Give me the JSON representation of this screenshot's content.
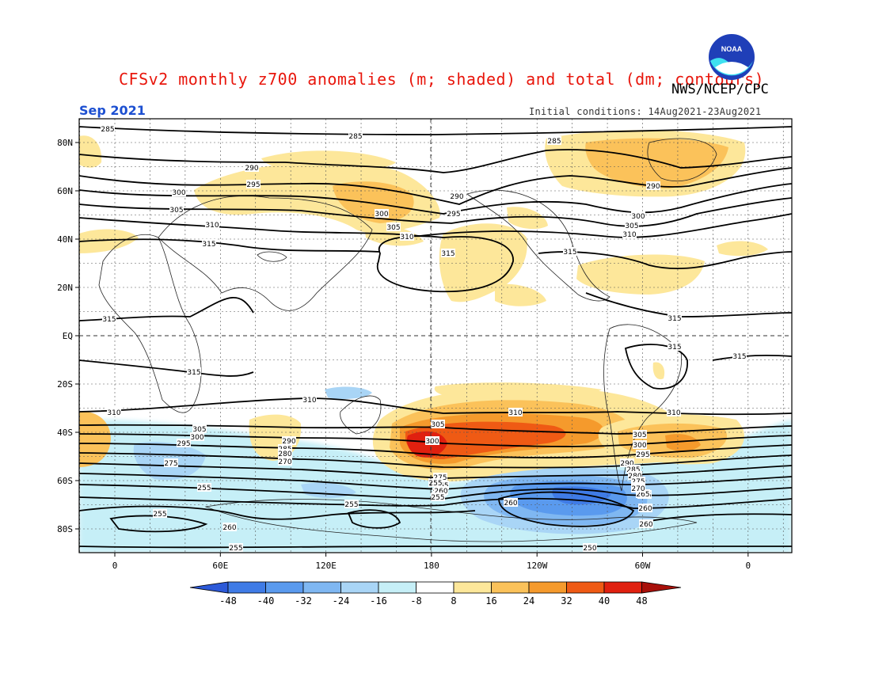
{
  "header": {
    "title": "CFSv2 monthly z700 anomalies (m; shaded) and total (dm; contours)",
    "agency": "NWS/NCEP/CPC",
    "valid_month": "Sep 2021",
    "initial_conditions": "Initial conditions: 14Aug2021-23Aug2021",
    "logo_text": "NOAA"
  },
  "axes": {
    "lat_labels": [
      "80N",
      "60N",
      "40N",
      "20N",
      "EQ",
      "20S",
      "40S",
      "60S",
      "80S"
    ],
    "lon_labels": [
      "0",
      "60E",
      "120E",
      "180",
      "120W",
      "60W",
      "0"
    ]
  },
  "colorbar": {
    "labels": [
      "-48",
      "-40",
      "-32",
      "-24",
      "-16",
      "-8",
      "8",
      "16",
      "24",
      "32",
      "40",
      "48"
    ],
    "colors": [
      "#2c59d8",
      "#3f7be6",
      "#5a9aee",
      "#7fb7f2",
      "#a9d5f6",
      "#c6eff7",
      "#ffffff",
      "#fde79a",
      "#fbc25a",
      "#f59a2c",
      "#ef5a14",
      "#e0200f",
      "#a8100a"
    ]
  },
  "contour_labels": [
    {
      "text": "285"
    },
    {
      "text": "285"
    },
    {
      "text": "285"
    },
    {
      "text": "290"
    },
    {
      "text": "290"
    },
    {
      "text": "290"
    },
    {
      "text": "295"
    },
    {
      "text": "295"
    },
    {
      "text": "300"
    },
    {
      "text": "300"
    },
    {
      "text": "300"
    },
    {
      "text": "305"
    },
    {
      "text": "305"
    },
    {
      "text": "305"
    },
    {
      "text": "310"
    },
    {
      "text": "310"
    },
    {
      "text": "310"
    },
    {
      "text": "315"
    },
    {
      "text": "315"
    },
    {
      "text": "315"
    },
    {
      "text": "315"
    },
    {
      "text": "315"
    },
    {
      "text": "315"
    },
    {
      "text": "315"
    },
    {
      "text": "315"
    },
    {
      "text": "310"
    },
    {
      "text": "310"
    },
    {
      "text": "310"
    },
    {
      "text": "310"
    },
    {
      "text": "305"
    },
    {
      "text": "305"
    },
    {
      "text": "300"
    },
    {
      "text": "300"
    },
    {
      "text": "295"
    },
    {
      "text": "290"
    },
    {
      "text": "285"
    },
    {
      "text": "280"
    },
    {
      "text": "270"
    },
    {
      "text": "275"
    },
    {
      "text": "305"
    },
    {
      "text": "300"
    },
    {
      "text": "295"
    },
    {
      "text": "290"
    },
    {
      "text": "285"
    },
    {
      "text": "280"
    },
    {
      "text": "275"
    },
    {
      "text": "270"
    },
    {
      "text": "265"
    },
    {
      "text": "260"
    },
    {
      "text": "275"
    },
    {
      "text": "265"
    },
    {
      "text": "260"
    },
    {
      "text": "255"
    },
    {
      "text": "255"
    },
    {
      "text": "255"
    },
    {
      "text": "255"
    },
    {
      "text": "250"
    },
    {
      "text": "260"
    },
    {
      "text": "260"
    },
    {
      "text": "255"
    },
    {
      "text": "260"
    },
    {
      "text": "260"
    },
    {
      "text": "255"
    },
    {
      "text": "265"
    },
    {
      "text": "270"
    }
  ]
}
